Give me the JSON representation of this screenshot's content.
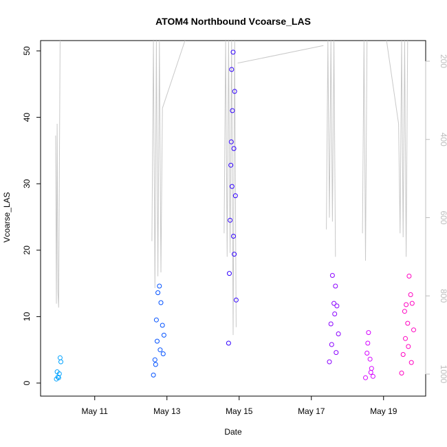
{
  "chart_data": {
    "type": "scatter",
    "title": "ATOM4 Northbound Vcoarse_LAS",
    "xlabel": "Date",
    "ylabel": "Vcoarse_LAS",
    "ylim": [
      0,
      50
    ],
    "yticks": [
      0,
      10,
      20,
      30,
      40,
      50
    ],
    "xlim": [
      "2016-05-09T12:00",
      "2016-05-20T04:00"
    ],
    "xticks": [
      {
        "label": "May 11",
        "value": "2016-05-11"
      },
      {
        "label": "May 13",
        "value": "2016-05-13"
      },
      {
        "label": "May 15",
        "value": "2016-05-15"
      },
      {
        "label": "May 17",
        "value": "2016-05-17"
      },
      {
        "label": "May 19",
        "value": "2016-05-19"
      }
    ],
    "right_axis": {
      "ylim_reversed": [
        1050,
        130
      ],
      "ticks": [
        200,
        400,
        600,
        800,
        1000
      ],
      "color": "#bdbdbd"
    },
    "grid": false,
    "legend": "none",
    "series": [
      {
        "color": "#00a2ff",
        "x": [
          "2016-05-09T23:00",
          "2016-05-10T00:00",
          "2016-05-10T01:00",
          "2016-05-10T01:30",
          "2016-05-09T23:30",
          "2016-05-09T22:30",
          "2016-05-10T00:30"
        ],
        "y": [
          1.7,
          0.8,
          3.8,
          3.2,
          0.9,
          0.6,
          1.4
        ]
      },
      {
        "color": "#0050ff",
        "x": [
          "2016-05-12T15:00",
          "2016-05-12T16:00",
          "2016-05-12T17:00",
          "2016-05-12T18:00",
          "2016-05-12T19:00",
          "2016-05-12T20:00",
          "2016-05-12T21:00",
          "2016-05-12T22:00",
          "2016-05-12T17:30",
          "2016-05-12T19:30",
          "2016-05-12T21:30",
          "2016-05-12T16:30"
        ],
        "y": [
          1.2,
          3.5,
          9.5,
          13.6,
          14.6,
          12.1,
          8.7,
          7.2,
          6.3,
          5.0,
          4.4,
          2.8
        ]
      },
      {
        "color": "#3000ff",
        "x": [
          "2016-05-14T17:00",
          "2016-05-14T18:00",
          "2016-05-14T19:00",
          "2016-05-14T20:00",
          "2016-05-14T21:00",
          "2016-05-14T19:30",
          "2016-05-14T20:30",
          "2016-05-14T18:30",
          "2016-05-14T21:30",
          "2016-05-14T17:30",
          "2016-05-14T22:00",
          "2016-05-14T19:15",
          "2016-05-14T20:15",
          "2016-05-14T18:45",
          "2016-05-14T20:45"
        ],
        "y": [
          6.0,
          24.5,
          47.2,
          49.8,
          43.9,
          41.0,
          35.3,
          32.8,
          28.2,
          16.5,
          12.5,
          29.6,
          22.1,
          36.3,
          19.4
        ]
      },
      {
        "color": "#8a00ff",
        "x": [
          "2016-05-17T12:00",
          "2016-05-17T13:00",
          "2016-05-17T14:00",
          "2016-05-17T15:00",
          "2016-05-17T16:00",
          "2016-05-17T17:00",
          "2016-05-17T18:00",
          "2016-05-17T13:30",
          "2016-05-17T15:30",
          "2016-05-17T16:30"
        ],
        "y": [
          3.2,
          8.9,
          16.2,
          12.0,
          14.6,
          11.6,
          7.4,
          5.8,
          10.4,
          4.6
        ]
      },
      {
        "color": "#d400ff",
        "x": [
          "2016-05-18T12:00",
          "2016-05-18T13:00",
          "2016-05-18T14:00",
          "2016-05-18T15:00",
          "2016-05-18T16:00",
          "2016-05-18T17:00",
          "2016-05-18T13:30",
          "2016-05-18T15:30"
        ],
        "y": [
          0.8,
          4.5,
          7.6,
          3.6,
          2.2,
          1.0,
          6.0,
          1.6
        ]
      },
      {
        "color": "#ff00c0",
        "x": [
          "2016-05-19T12:00",
          "2016-05-19T13:00",
          "2016-05-19T14:00",
          "2016-05-19T15:00",
          "2016-05-19T16:00",
          "2016-05-19T17:00",
          "2016-05-19T18:00",
          "2016-05-19T19:00",
          "2016-05-19T20:00",
          "2016-05-19T14:30",
          "2016-05-19T16:30",
          "2016-05-19T18:30"
        ],
        "y": [
          1.5,
          4.3,
          10.8,
          11.8,
          9.0,
          16.1,
          13.3,
          12.0,
          8.0,
          6.7,
          5.5,
          3.1
        ]
      }
    ],
    "overlay": {
      "color": "#c8c8c8",
      "segments": [
        {
          "x": [
            "2016-05-09T22:00",
            "2016-05-09T22:30",
            "2016-05-09T23:00",
            "2016-05-09T23:30",
            "2016-05-10T00:00",
            "2016-05-10T00:30",
            "2016-05-10T01:00"
          ],
          "y": [
            390,
            820,
            360,
            790,
            830,
            500,
            145
          ]
        },
        {
          "x": [
            "2016-05-12T14:00",
            "2016-05-12T15:00",
            "2016-05-12T16:00",
            "2016-05-12T17:00",
            "2016-05-12T18:00",
            "2016-05-12T19:00",
            "2016-05-12T20:00",
            "2016-05-12T21:00"
          ],
          "y": [
            660,
            145,
            780,
            145,
            750,
            145,
            740,
            320
          ]
        },
        {
          "x": [
            "2016-05-12T21:00",
            "2016-05-13T12:00"
          ],
          "y": [
            320,
            135
          ]
        },
        {
          "x": [
            "2016-05-14T14:00",
            "2016-05-14T15:00",
            "2016-05-14T16:00",
            "2016-05-14T17:00",
            "2016-05-14T18:00",
            "2016-05-14T19:00",
            "2016-05-14T20:00",
            "2016-05-14T21:00",
            "2016-05-14T22:00"
          ],
          "y": [
            640,
            145,
            700,
            145,
            690,
            145,
            900,
            145,
            880
          ]
        },
        {
          "x": [
            "2016-05-14T23:00",
            "2016-05-17T08:00"
          ],
          "y": [
            205,
            160
          ]
        },
        {
          "x": [
            "2016-05-17T10:00",
            "2016-05-17T11:00",
            "2016-05-17T12:00",
            "2016-05-17T13:00",
            "2016-05-17T14:00",
            "2016-05-17T15:00",
            "2016-05-17T16:00"
          ],
          "y": [
            630,
            145,
            600,
            145,
            610,
            145,
            700
          ]
        },
        {
          "x": [
            "2016-05-18T10:00",
            "2016-05-18T11:00",
            "2016-05-18T12:00",
            "2016-05-18T13:00"
          ],
          "y": [
            640,
            145,
            710,
            145
          ]
        },
        {
          "x": [
            "2016-05-19T02:00",
            "2016-05-19T10:00",
            "2016-05-19T11:00",
            "2016-05-19T12:00",
            "2016-05-19T13:00",
            "2016-05-19T14:00",
            "2016-05-19T15:00",
            "2016-05-19T16:00"
          ],
          "y": [
            140,
            360,
            640,
            145,
            650,
            145,
            700,
            145
          ]
        }
      ]
    }
  }
}
